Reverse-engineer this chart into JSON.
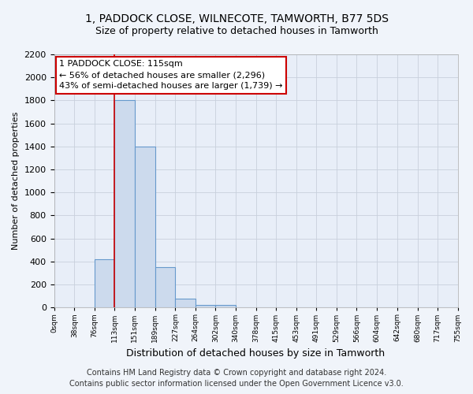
{
  "title": "1, PADDOCK CLOSE, WILNECOTE, TAMWORTH, B77 5DS",
  "subtitle": "Size of property relative to detached houses in Tamworth",
  "xlabel": "Distribution of detached houses by size in Tamworth",
  "ylabel": "Number of detached properties",
  "footer_line1": "Contains HM Land Registry data © Crown copyright and database right 2024.",
  "footer_line2": "Contains public sector information licensed under the Open Government Licence v3.0.",
  "bin_edges": [
    0,
    38,
    76,
    113,
    151,
    189,
    227,
    264,
    302,
    340,
    378,
    415,
    453,
    491,
    529,
    566,
    604,
    642,
    680,
    717,
    755
  ],
  "bar_heights": [
    5,
    0,
    420,
    1800,
    1400,
    350,
    80,
    20,
    20,
    5,
    0,
    0,
    0,
    0,
    0,
    0,
    0,
    0,
    0,
    0
  ],
  "bar_color": "#ccdaed",
  "bar_edgecolor": "#6699cc",
  "bar_linewidth": 0.8,
  "grid_color": "#c8d0dc",
  "property_line_x": 113,
  "property_line_color": "#cc0000",
  "annotation_text": "1 PADDOCK CLOSE: 115sqm\n← 56% of detached houses are smaller (2,296)\n43% of semi-detached houses are larger (1,739) →",
  "annotation_box_color": "#ffffff",
  "annotation_box_edgecolor": "#cc0000",
  "ylim": [
    0,
    2200
  ],
  "xlim": [
    0,
    755
  ],
  "ytick_interval": 200,
  "background_color": "#f0f4fa",
  "plot_bg_color": "#e8eef8",
  "title_fontsize": 10,
  "subtitle_fontsize": 9,
  "annotation_fontsize": 8,
  "ylabel_fontsize": 8,
  "xlabel_fontsize": 9,
  "footer_fontsize": 7,
  "tick_label_fontsize": 6.5
}
